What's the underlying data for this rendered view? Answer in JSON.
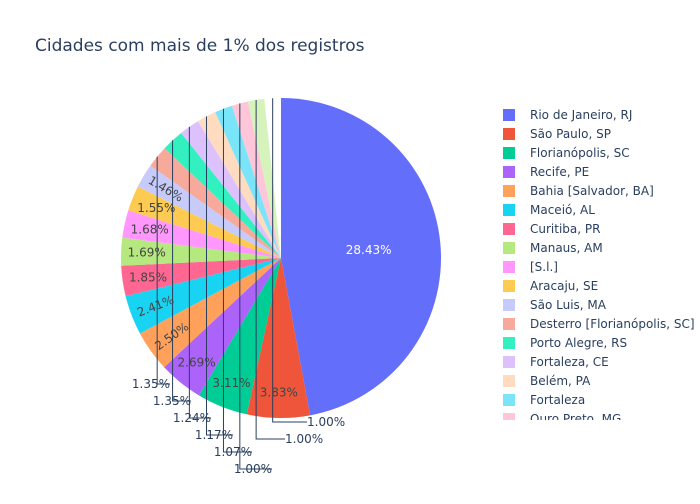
{
  "chart_data": {
    "type": "pie",
    "title": "Cidades com mais de 1% dos registros",
    "sort": "descending",
    "direction": "clockwise",
    "slices": [
      {
        "label": "Rio de Janeiro, RJ",
        "value": 28.43,
        "color": "#636efa"
      },
      {
        "label": "São Paulo, SP",
        "value": 3.83,
        "color": "#EF553B"
      },
      {
        "label": "Florianópolis, SC",
        "value": 3.11,
        "color": "#00cc96"
      },
      {
        "label": "Recife, PE",
        "value": 2.69,
        "color": "#ab63fa"
      },
      {
        "label": "Bahia [Salvador, BA]",
        "value": 2.5,
        "color": "#FFA15A"
      },
      {
        "label": "Maceió, AL",
        "value": 2.41,
        "color": "#19d3f3"
      },
      {
        "label": "Curitiba, PR",
        "value": 1.85,
        "color": "#FF6692"
      },
      {
        "label": "Manaus, AM",
        "value": 1.69,
        "color": "#B6E880"
      },
      {
        "label": "[S.l.]",
        "value": 1.68,
        "color": "#FF97FF"
      },
      {
        "label": "Aracaju, SE",
        "value": 1.55,
        "color": "#FECB52"
      },
      {
        "label": "São Luis, MA",
        "value": 1.46,
        "color": "#c6cbfb"
      },
      {
        "label": "Desterro [Florianópolis, SC]",
        "value": 1.35,
        "color": "#f7aa9b"
      },
      {
        "label": "Porto Alegre, RS",
        "value": 1.35,
        "color": "#33f0c0"
      },
      {
        "label": "Fortaleza, CE",
        "value": 1.24,
        "color": "#dcc1fd"
      },
      {
        "label": "Belém, PA",
        "value": 1.17,
        "color": "#ffdcbf"
      },
      {
        "label": "Fortaleza",
        "value": 1.07,
        "color": "#7ae5f8"
      },
      {
        "label": "Ouro Preto, MG",
        "value": 1.0,
        "color": "#ffc5d8"
      },
      {
        "label": "",
        "value": 1.0,
        "color": "#d6f3bc"
      },
      {
        "label": "",
        "value": 1.0,
        "color": "#ffffff"
      }
    ],
    "percent_labels": [
      "28.43%",
      "3.83%",
      "3.11%",
      "2.69%",
      "2.50%",
      "2.41%",
      "1.85%",
      "1.69%",
      "1.68%",
      "1.55%",
      "1.46%",
      "1.35%",
      "1.35%",
      "1.24%",
      "1.17%",
      "1.07%",
      "1.00%",
      "1.00%",
      "1.00%"
    ],
    "legend_position": "right"
  }
}
